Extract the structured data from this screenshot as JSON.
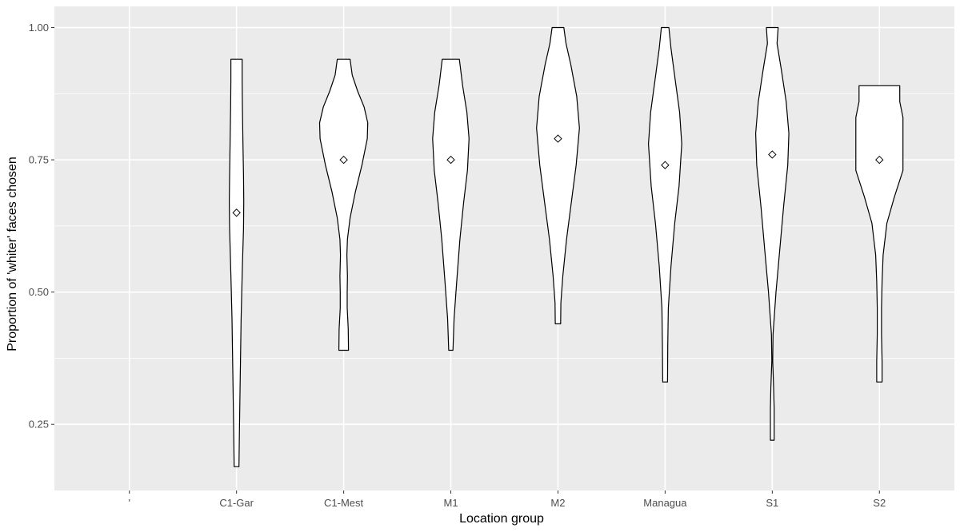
{
  "chart_data": {
    "type": "violin",
    "xlabel": "Location group",
    "ylabel": "Proportion of 'whiter' faces chosen",
    "categories": [
      "'",
      "C1-Gar",
      "C1-Mest",
      "M1",
      "M2",
      "Managua",
      "S1",
      "S2"
    ],
    "ylim": [
      0.125,
      1.04
    ],
    "yticks": [
      0.25,
      0.5,
      0.75,
      1.0
    ],
    "ytick_labels": [
      "0.25",
      "0.50",
      "0.75",
      "1.00"
    ],
    "grid": true,
    "legend": "none",
    "colors": {
      "panel": "#ebebeb",
      "grid": "#ffffff",
      "violin_fill": "#ffffff",
      "violin_stroke": "#000000"
    },
    "violins": [
      {
        "category": "C1-Gar",
        "min": 0.17,
        "max": 0.94,
        "mean": 0.65,
        "profile": [
          [
            0.17,
            0.045
          ],
          [
            0.25,
            0.055
          ],
          [
            0.35,
            0.07
          ],
          [
            0.45,
            0.085
          ],
          [
            0.55,
            0.11
          ],
          [
            0.62,
            0.13
          ],
          [
            0.67,
            0.135
          ],
          [
            0.72,
            0.13
          ],
          [
            0.78,
            0.12
          ],
          [
            0.85,
            0.11
          ],
          [
            0.9,
            0.105
          ],
          [
            0.94,
            0.105
          ]
        ]
      },
      {
        "category": "C1-Mest",
        "min": 0.39,
        "max": 0.94,
        "mean": 0.75,
        "profile": [
          [
            0.39,
            0.09
          ],
          [
            0.43,
            0.085
          ],
          [
            0.47,
            0.065
          ],
          [
            0.5,
            0.065
          ],
          [
            0.53,
            0.07
          ],
          [
            0.57,
            0.06
          ],
          [
            0.6,
            0.07
          ],
          [
            0.64,
            0.12
          ],
          [
            0.69,
            0.22
          ],
          [
            0.74,
            0.34
          ],
          [
            0.79,
            0.44
          ],
          [
            0.82,
            0.45
          ],
          [
            0.85,
            0.38
          ],
          [
            0.88,
            0.26
          ],
          [
            0.91,
            0.16
          ],
          [
            0.94,
            0.12
          ]
        ]
      },
      {
        "category": "M1",
        "min": 0.39,
        "max": 0.94,
        "mean": 0.75,
        "profile": [
          [
            0.39,
            0.04
          ],
          [
            0.45,
            0.06
          ],
          [
            0.52,
            0.11
          ],
          [
            0.6,
            0.17
          ],
          [
            0.67,
            0.24
          ],
          [
            0.73,
            0.31
          ],
          [
            0.79,
            0.34
          ],
          [
            0.84,
            0.3
          ],
          [
            0.89,
            0.22
          ],
          [
            0.94,
            0.16
          ]
        ]
      },
      {
        "category": "M2",
        "min": 0.44,
        "max": 1.0,
        "mean": 0.79,
        "profile": [
          [
            0.44,
            0.05
          ],
          [
            0.48,
            0.055
          ],
          [
            0.53,
            0.09
          ],
          [
            0.6,
            0.16
          ],
          [
            0.67,
            0.25
          ],
          [
            0.74,
            0.34
          ],
          [
            0.81,
            0.4
          ],
          [
            0.87,
            0.35
          ],
          [
            0.93,
            0.24
          ],
          [
            0.97,
            0.15
          ],
          [
            1.0,
            0.11
          ]
        ]
      },
      {
        "category": "Managua",
        "min": 0.33,
        "max": 1.0,
        "mean": 0.74,
        "profile": [
          [
            0.33,
            0.045
          ],
          [
            0.4,
            0.05
          ],
          [
            0.47,
            0.06
          ],
          [
            0.55,
            0.11
          ],
          [
            0.63,
            0.18
          ],
          [
            0.7,
            0.26
          ],
          [
            0.78,
            0.31
          ],
          [
            0.84,
            0.27
          ],
          [
            0.9,
            0.19
          ],
          [
            0.96,
            0.11
          ],
          [
            1.0,
            0.07
          ]
        ]
      },
      {
        "category": "S1",
        "min": 0.22,
        "max": 1.0,
        "mean": 0.76,
        "profile": [
          [
            0.22,
            0.035
          ],
          [
            0.28,
            0.035
          ],
          [
            0.32,
            0.025
          ],
          [
            0.37,
            0.008
          ],
          [
            0.42,
            0.015
          ],
          [
            0.5,
            0.07
          ],
          [
            0.58,
            0.14
          ],
          [
            0.66,
            0.21
          ],
          [
            0.74,
            0.29
          ],
          [
            0.8,
            0.31
          ],
          [
            0.86,
            0.26
          ],
          [
            0.92,
            0.17
          ],
          [
            0.97,
            0.09
          ],
          [
            1.0,
            0.11
          ]
        ]
      },
      {
        "category": "S2",
        "min": 0.33,
        "max": 0.89,
        "mean": 0.75,
        "profile": [
          [
            0.33,
            0.05
          ],
          [
            0.37,
            0.05
          ],
          [
            0.42,
            0.04
          ],
          [
            0.47,
            0.04
          ],
          [
            0.52,
            0.05
          ],
          [
            0.57,
            0.07
          ],
          [
            0.63,
            0.14
          ],
          [
            0.68,
            0.28
          ],
          [
            0.73,
            0.44
          ],
          [
            0.78,
            0.44
          ],
          [
            0.83,
            0.44
          ],
          [
            0.86,
            0.38
          ],
          [
            0.89,
            0.38
          ]
        ]
      }
    ]
  }
}
